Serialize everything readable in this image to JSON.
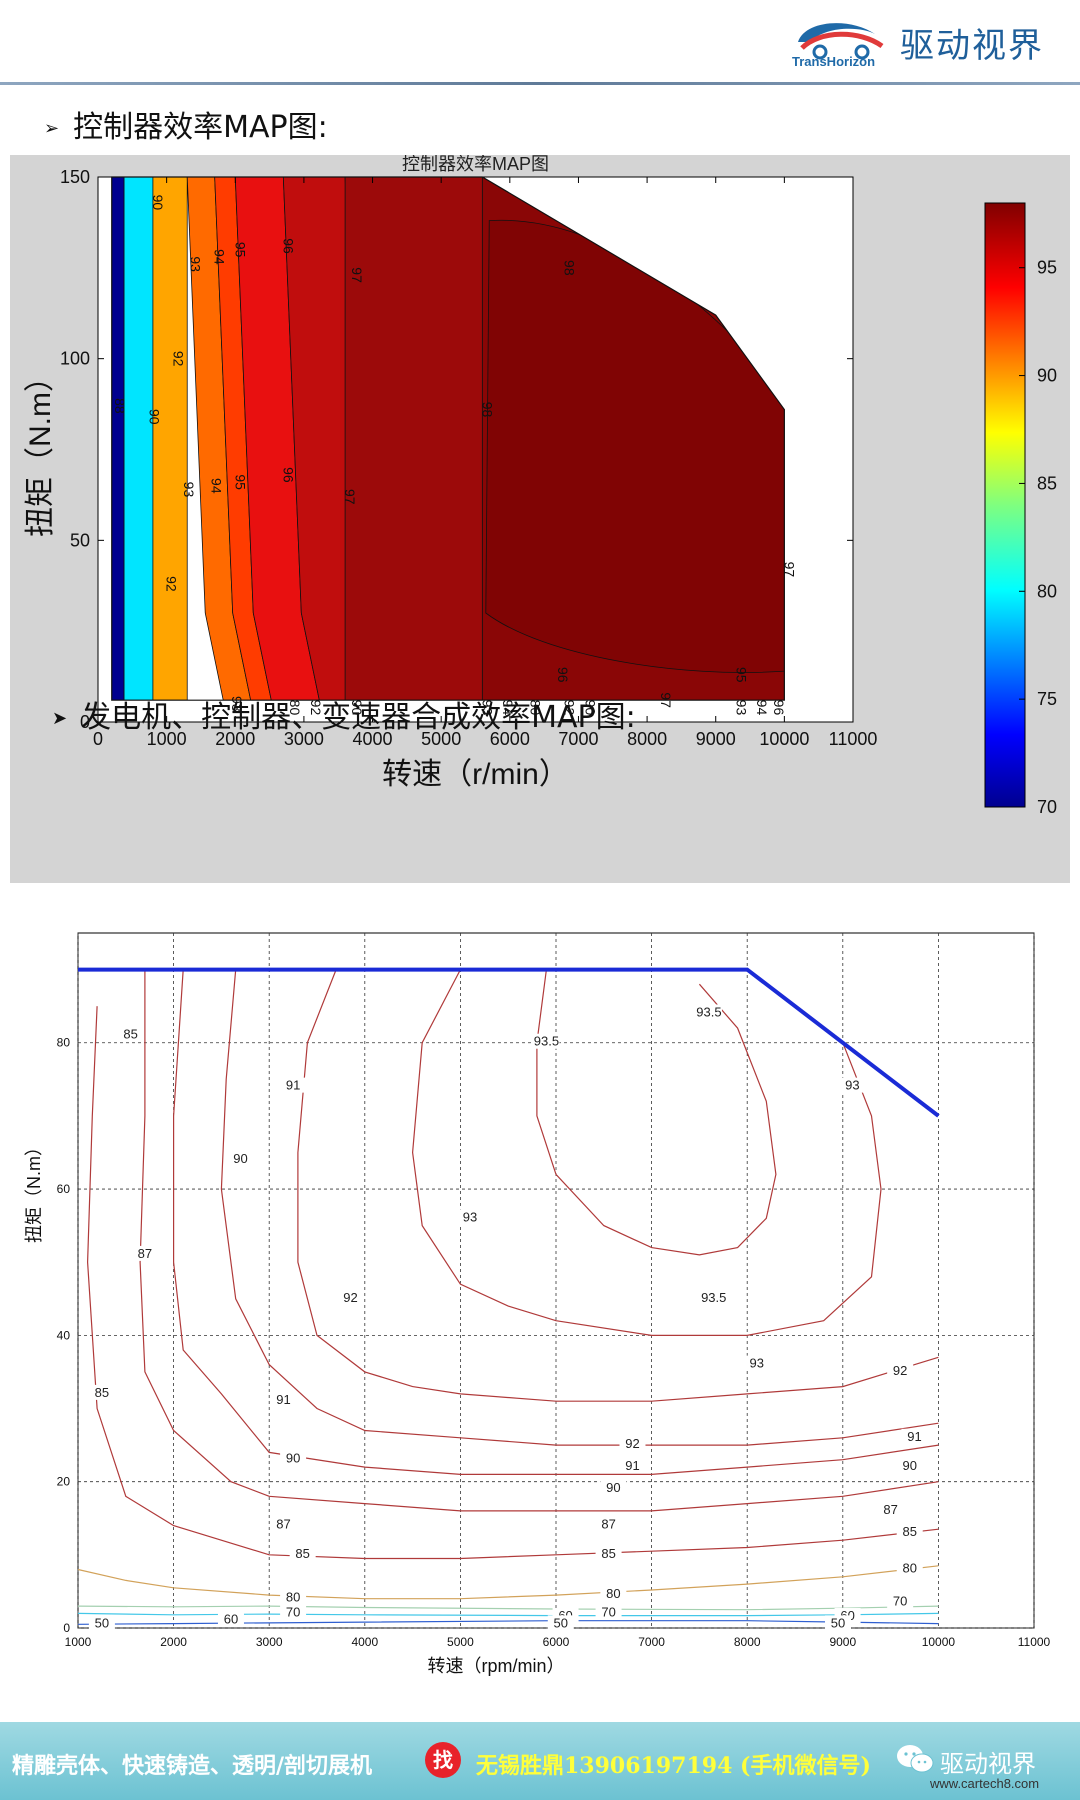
{
  "header": {
    "logo_en": "TransHorizon",
    "logo_zh": "驱动视界"
  },
  "bullets": [
    "控制器效率MAP图:",
    "发电机、控制器、变速器合成效率MAP图:"
  ],
  "colors": {
    "header_rule": "#6f88a6",
    "footer_bg": "#7ccbd8",
    "footer_accent": "#ffff3a",
    "find_badge": "#e8222a",
    "envelope_line": "#1a2bd6"
  },
  "chart_data": [
    {
      "type": "contour",
      "title": "控制器效率MAP图",
      "xlabel": "转速（r/min）",
      "ylabel": "扭矩（N.m）",
      "xlim": [
        0,
        11000
      ],
      "ylim": [
        0,
        150
      ],
      "x_ticks": [
        "0",
        "1000",
        "2000",
        "3000",
        "4000",
        "5000",
        "6000",
        "7000",
        "8000",
        "9000",
        "10000",
        "11000"
      ],
      "y_ticks": [
        "0",
        "50",
        "100",
        "150"
      ],
      "colorbar": {
        "min": 70,
        "max": 98,
        "ticks": [
          "70",
          "75",
          "80",
          "85",
          "90",
          "95"
        ],
        "colormap": "jet"
      },
      "envelope": {
        "x": [
          200,
          5600,
          9000,
          10000,
          10000,
          200
        ],
        "y": [
          150,
          150,
          112,
          86,
          6,
          6
        ]
      },
      "regions": [
        {
          "level": 70,
          "x_from": 200,
          "x_to": 380,
          "color": "#00008f"
        },
        {
          "level": 80,
          "x_from": 380,
          "x_to": 800,
          "color": "#00e5ff"
        },
        {
          "level": 90,
          "x_from": 800,
          "x_to": 1300,
          "color": "#ffa500"
        },
        {
          "level": 92,
          "x_from": 1300,
          "x_to": 1700,
          "color": "#ff6a00"
        },
        {
          "level": 94,
          "x_from": 1700,
          "x_to": 2000,
          "color": "#ff3c00"
        },
        {
          "level": 95,
          "x_from": 2000,
          "x_to": 2700,
          "color": "#e81010"
        },
        {
          "level": 96,
          "x_from": 2700,
          "x_to": 3600,
          "color": "#c00d0d"
        },
        {
          "level": 97,
          "x_from": 3600,
          "x_to": 5600,
          "color": "#9c0a0a"
        },
        {
          "level": 98,
          "x_from": 5600,
          "x_to": 10000,
          "color": "#8a0606"
        }
      ],
      "contour_labels": [
        {
          "text": "90",
          "x": 800,
          "y": 143
        },
        {
          "text": "93",
          "x": 1350,
          "y": 126
        },
        {
          "text": "94",
          "x": 1700,
          "y": 128
        },
        {
          "text": "95",
          "x": 2000,
          "y": 130
        },
        {
          "text": "96",
          "x": 2700,
          "y": 131
        },
        {
          "text": "97",
          "x": 3700,
          "y": 123
        },
        {
          "text": "98",
          "x": 6800,
          "y": 125
        },
        {
          "text": "92",
          "x": 1100,
          "y": 100
        },
        {
          "text": "90",
          "x": 750,
          "y": 84
        },
        {
          "text": "88",
          "x": 250,
          "y": 87
        },
        {
          "text": "98",
          "x": 5600,
          "y": 86
        },
        {
          "text": "93",
          "x": 1250,
          "y": 64
        },
        {
          "text": "94",
          "x": 1650,
          "y": 65
        },
        {
          "text": "95",
          "x": 2000,
          "y": 66
        },
        {
          "text": "96",
          "x": 2700,
          "y": 68
        },
        {
          "text": "97",
          "x": 3600,
          "y": 62
        },
        {
          "text": "92",
          "x": 1000,
          "y": 38
        },
        {
          "text": "97",
          "x": 10000,
          "y": 42
        },
        {
          "text": "96",
          "x": 6700,
          "y": 13
        },
        {
          "text": "95",
          "x": 9300,
          "y": 13
        },
        {
          "text": "93",
          "x": 1950,
          "y": 5
        },
        {
          "text": "80",
          "x": 2800,
          "y": 4
        },
        {
          "text": "92",
          "x": 3100,
          "y": 4
        },
        {
          "text": "90",
          "x": 3700,
          "y": 4
        },
        {
          "text": "93",
          "x": 5600,
          "y": 4
        },
        {
          "text": "94",
          "x": 5900,
          "y": 4
        },
        {
          "text": "80",
          "x": 6300,
          "y": 4
        },
        {
          "text": "92",
          "x": 6800,
          "y": 4
        },
        {
          "text": "90",
          "x": 7100,
          "y": 4
        },
        {
          "text": "97",
          "x": 8200,
          "y": 6
        },
        {
          "text": "93",
          "x": 9300,
          "y": 4
        },
        {
          "text": "94",
          "x": 9600,
          "y": 4
        },
        {
          "text": "96",
          "x": 9850,
          "y": 4
        }
      ]
    },
    {
      "type": "contour",
      "xlabel": "转速（rpm/min）",
      "ylabel": "扭矩（N.m）",
      "xlim": [
        1000,
        11000
      ],
      "ylim": [
        0,
        95
      ],
      "x_ticks": [
        "1000",
        "2000",
        "3000",
        "4000",
        "5000",
        "6000",
        "7000",
        "8000",
        "9000",
        "10000",
        "11000"
      ],
      "y_ticks": [
        "0",
        "20",
        "40",
        "60",
        "80"
      ],
      "grid": true,
      "envelope": {
        "x": [
          1000,
          8000,
          10000
        ],
        "y": [
          90,
          90,
          70
        ]
      },
      "contours": [
        {
          "level": 50,
          "color": "#2f5fd0",
          "x": [
            1000,
            2000,
            4000,
            6000,
            8000,
            9000,
            10000
          ],
          "y": [
            0.5,
            0.6,
            0.8,
            1.0,
            1.0,
            0.8,
            0.6
          ]
        },
        {
          "level": 60,
          "color": "#44c8e8",
          "x": [
            1000,
            2000,
            3000,
            4000,
            6000,
            8000,
            9000,
            10000
          ],
          "y": [
            2.0,
            1.8,
            1.9,
            1.8,
            1.7,
            1.7,
            1.8,
            2.0
          ]
        },
        {
          "level": 70,
          "color": "#a4d0b0",
          "x": [
            1000,
            2000,
            3000,
            4000,
            6000,
            8000,
            9000,
            10000
          ],
          "y": [
            3.0,
            2.9,
            3.0,
            2.8,
            2.6,
            2.5,
            2.7,
            3.0
          ]
        },
        {
          "level": 80,
          "color": "#d2a25a",
          "x": [
            1000,
            1500,
            2000,
            3000,
            4000,
            5000,
            6000,
            7000,
            8000,
            9000,
            10000
          ],
          "y": [
            8.0,
            6.5,
            5.5,
            4.5,
            4.0,
            4.0,
            4.5,
            5.2,
            6.0,
            7.0,
            8.5
          ]
        },
        {
          "level": 85,
          "color": "#b03a3a",
          "x": [
            1200,
            1150,
            1100,
            1200,
            1500,
            2000,
            3000,
            4000,
            5000,
            6000,
            7000,
            8000,
            9000,
            10000
          ],
          "y": [
            85,
            70,
            50,
            30,
            18,
            14,
            10,
            9.5,
            9.5,
            10,
            10.5,
            11,
            12,
            13.5
          ]
        },
        {
          "level": 87,
          "color": "#b03a3a",
          "x": [
            1700,
            1700,
            1650,
            1700,
            2000,
            2600,
            3000,
            4000,
            5000,
            6000,
            7000,
            8000,
            9000,
            10000
          ],
          "y": [
            90,
            70,
            50,
            35,
            27,
            20,
            18,
            17,
            16,
            16,
            16,
            17,
            18,
            20
          ]
        },
        {
          "level": 90,
          "color": "#b03a3a",
          "x": [
            2100,
            2000,
            2000,
            2100,
            2500,
            3000,
            4000,
            5000,
            6000,
            7000,
            8000,
            9000,
            10000
          ],
          "y": [
            90,
            70,
            50,
            38,
            32,
            24,
            22,
            21,
            21,
            21,
            22,
            23,
            25
          ]
        },
        {
          "level": 91,
          "color": "#b03a3a",
          "x": [
            2650,
            2550,
            2500,
            2650,
            3000,
            3500,
            4000,
            5000,
            6000,
            7000,
            8000,
            9000,
            10000
          ],
          "y": [
            90,
            75,
            60,
            45,
            36,
            30,
            27,
            26,
            25,
            25,
            25,
            26,
            28
          ]
        },
        {
          "level": 92,
          "color": "#b03a3a",
          "x": [
            3700,
            3400,
            3300,
            3300,
            3500,
            4000,
            4500,
            5000,
            6000,
            7000,
            8000,
            9000,
            9500,
            10000
          ],
          "y": [
            90,
            80,
            65,
            50,
            40,
            35,
            33,
            32,
            31,
            31,
            32,
            33,
            35,
            37
          ]
        },
        {
          "level": 93,
          "color": "#b03a3a",
          "x": [
            5000,
            4600,
            4500,
            4600,
            5000,
            5500,
            6000,
            7000,
            8000,
            8800,
            9300,
            9400,
            9300,
            9000
          ],
          "y": [
            90,
            80,
            65,
            55,
            47,
            44,
            42,
            40,
            40,
            42,
            48,
            60,
            70,
            80
          ]
        },
        {
          "level": 93.5,
          "color": "#b03a3a",
          "x": [
            5900,
            5800,
            5800,
            6000,
            6500,
            7000,
            7500,
            7900,
            8200,
            8300,
            8200,
            7900,
            7500
          ],
          "y": [
            90,
            80,
            70,
            62,
            55,
            52,
            51,
            52,
            56,
            62,
            72,
            82,
            88
          ]
        }
      ],
      "contour_labels": [
        {
          "text": "85",
          "x": 1550,
          "y": 81
        },
        {
          "text": "91",
          "x": 3250,
          "y": 74
        },
        {
          "text": "90",
          "x": 2700,
          "y": 64
        },
        {
          "text": "93.5",
          "x": 5900,
          "y": 80
        },
        {
          "text": "93.5",
          "x": 7600,
          "y": 84
        },
        {
          "text": "93",
          "x": 9100,
          "y": 74
        },
        {
          "text": "87",
          "x": 1700,
          "y": 51
        },
        {
          "text": "92",
          "x": 3850,
          "y": 45
        },
        {
          "text": "93",
          "x": 5100,
          "y": 56
        },
        {
          "text": "93.5",
          "x": 7650,
          "y": 45
        },
        {
          "text": "85",
          "x": 1250,
          "y": 32
        },
        {
          "text": "93",
          "x": 8100,
          "y": 36
        },
        {
          "text": "92",
          "x": 9600,
          "y": 35
        },
        {
          "text": "91",
          "x": 3150,
          "y": 31
        },
        {
          "text": "92",
          "x": 6800,
          "y": 25
        },
        {
          "text": "91",
          "x": 9750,
          "y": 26
        },
        {
          "text": "90",
          "x": 3250,
          "y": 23
        },
        {
          "text": "91",
          "x": 6800,
          "y": 22
        },
        {
          "text": "90",
          "x": 6600,
          "y": 19
        },
        {
          "text": "90",
          "x": 9700,
          "y": 22
        },
        {
          "text": "87",
          "x": 3150,
          "y": 14
        },
        {
          "text": "87",
          "x": 6550,
          "y": 14
        },
        {
          "text": "87",
          "x": 9500,
          "y": 16
        },
        {
          "text": "85",
          "x": 3350,
          "y": 10
        },
        {
          "text": "85",
          "x": 6550,
          "y": 10
        },
        {
          "text": "85",
          "x": 9700,
          "y": 13
        },
        {
          "text": "80",
          "x": 3250,
          "y": 4
        },
        {
          "text": "80",
          "x": 6600,
          "y": 4.5
        },
        {
          "text": "80",
          "x": 9700,
          "y": 8
        },
        {
          "text": "70",
          "x": 3250,
          "y": 2
        },
        {
          "text": "70",
          "x": 6550,
          "y": 2
        },
        {
          "text": "70",
          "x": 9600,
          "y": 3.5
        },
        {
          "text": "60",
          "x": 2600,
          "y": 1
        },
        {
          "text": "60",
          "x": 6100,
          "y": 1.5
        },
        {
          "text": "60",
          "x": 9050,
          "y": 1.5
        },
        {
          "text": "50",
          "x": 1250,
          "y": 0.5
        },
        {
          "text": "50",
          "x": 6050,
          "y": 0.5
        },
        {
          "text": "50",
          "x": 8950,
          "y": 0.5
        }
      ]
    }
  ],
  "footer": {
    "text": "精雕壳体、快速铸造、透明/剖切展机",
    "find": "找",
    "contact": "无锡胜鼎13906197194 (手机微信号)",
    "brand": "驱动视界",
    "site": "www.cartech8.com"
  }
}
